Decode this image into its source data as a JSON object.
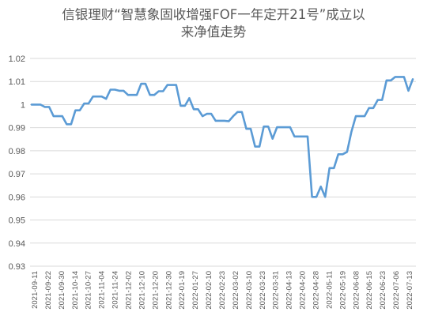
{
  "chart_data": {
    "type": "line",
    "title_line1": "信银理财“智慧象固收增强FOF一年定开21号”成立以",
    "title_line2": "来净值走势",
    "xlabel": "",
    "ylabel": "",
    "ylim": [
      0.93,
      1.02
    ],
    "yticks": [
      "0.93",
      "0.94",
      "0.95",
      "0.96",
      "0.97",
      "0.98",
      "0.99",
      "1",
      "1.01",
      "1.02"
    ],
    "x_tick_labels": [
      "2021-09-11",
      "2021-09-22",
      "2021-09-30",
      "2021-10-14",
      "2021-10-27",
      "2021-11-04",
      "2021-11-24",
      "2021-12-02",
      "2021-12-10",
      "2021-12-20",
      "2021-12-30",
      "2022-01-19",
      "2022-01-27",
      "2022-02-10",
      "2022-02-23",
      "2022-03-02",
      "2022-03-10",
      "2022-03-23",
      "2022-03-31",
      "2022-04-13",
      "2022-04-20",
      "2022-04-28",
      "2022-05-11",
      "2022-05-19",
      "2022-06-08",
      "2022-06-15",
      "2022-06-23",
      "2022-07-06",
      "2022-07-13"
    ],
    "grid": true,
    "line_color": "#5b9bd5",
    "values": [
      1.0,
      1.0,
      1.0,
      0.999,
      0.999,
      0.995,
      0.995,
      0.995,
      0.9915,
      0.9915,
      0.9975,
      0.9975,
      1.0005,
      1.0005,
      1.0035,
      1.0035,
      1.0035,
      1.0025,
      1.0065,
      1.0065,
      1.006,
      1.006,
      1.0042,
      1.0042,
      1.0042,
      1.009,
      1.009,
      1.0042,
      1.0042,
      1.0058,
      1.0058,
      1.0085,
      1.0085,
      1.0085,
      0.9995,
      0.9995,
      1.0028,
      0.998,
      0.998,
      0.995,
      0.996,
      0.996,
      0.993,
      0.993,
      0.993,
      0.9928,
      0.995,
      0.9968,
      0.9968,
      0.9895,
      0.9895,
      0.9818,
      0.9818,
      0.9905,
      0.9905,
      0.9852,
      0.9902,
      0.9902,
      0.9902,
      0.9902,
      0.9862,
      0.9862,
      0.9862,
      0.9862,
      0.96,
      0.96,
      0.9645,
      0.96,
      0.9725,
      0.9725,
      0.9785,
      0.9785,
      0.9795,
      0.9882,
      0.995,
      0.995,
      0.995,
      0.9985,
      0.9985,
      1.002,
      1.002,
      1.0105,
      1.0105,
      1.012,
      1.012,
      1.012,
      1.006,
      1.011
    ]
  }
}
